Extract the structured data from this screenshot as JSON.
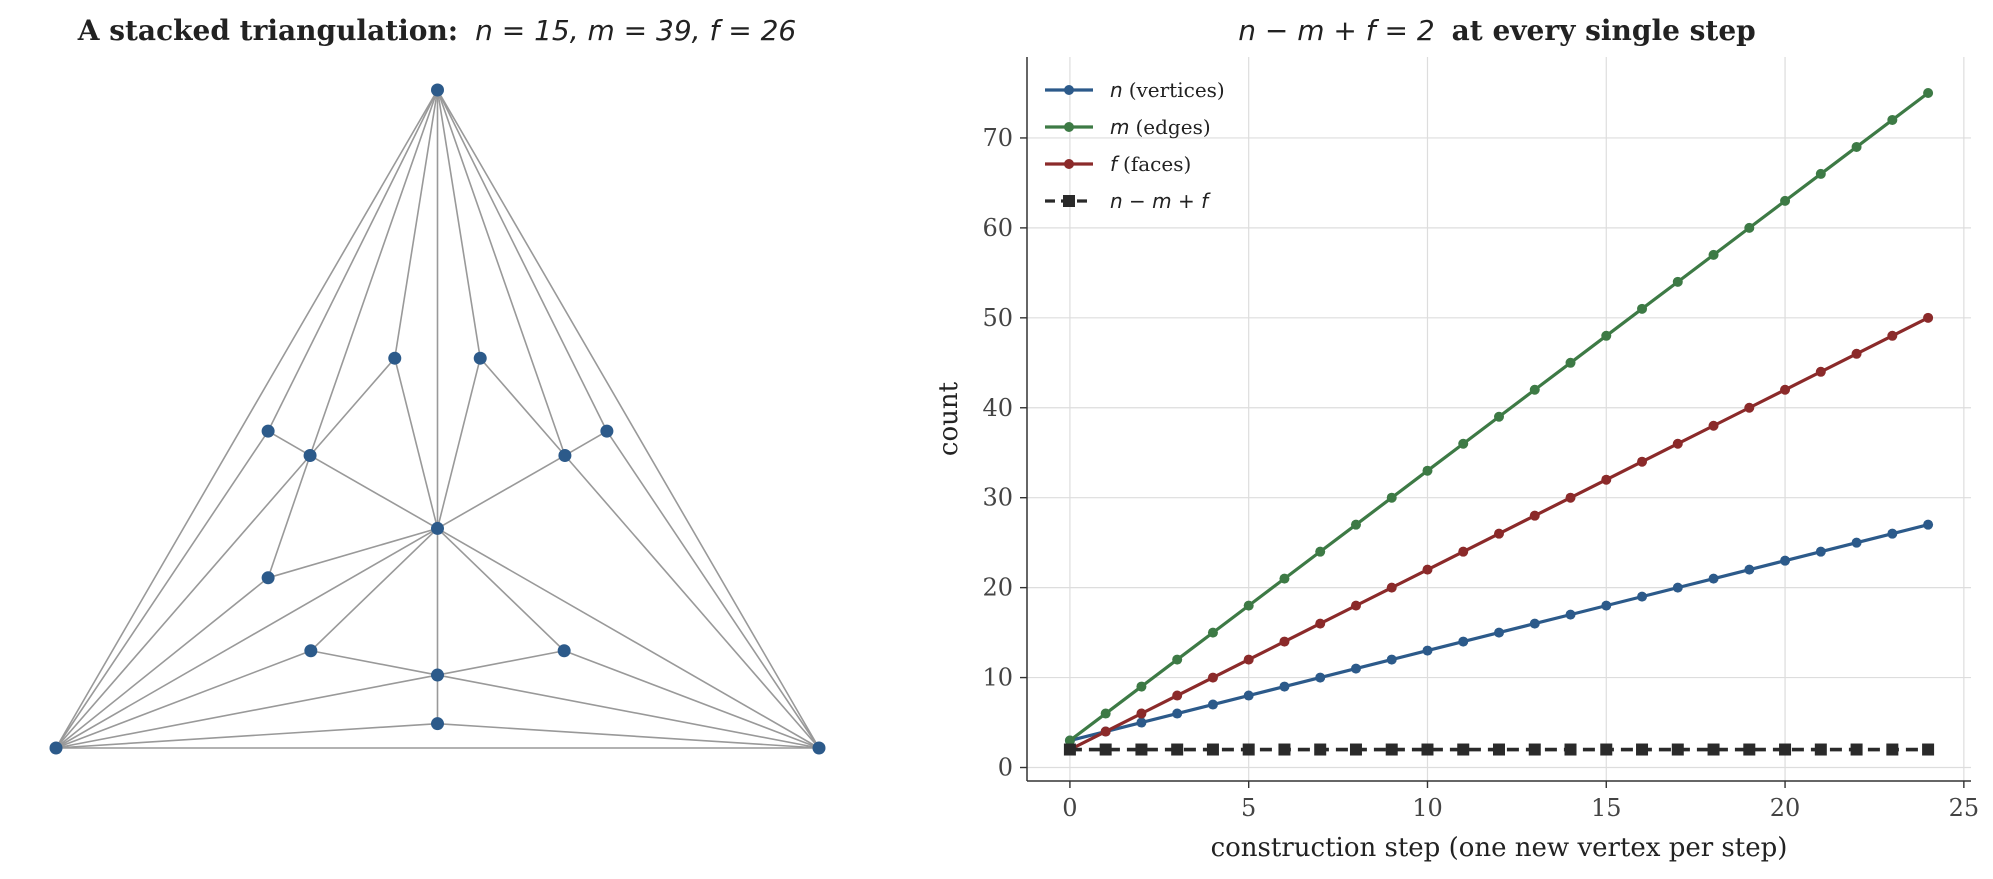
{
  "chart_data": [
    {
      "type": "graph",
      "title_bold": "A stacked triangulation:",
      "title_math": "n = 15, m = 39, f = 26",
      "node_color": "#2c5a8a",
      "edge_color": "#999999",
      "nodes": [
        {
          "id": "A",
          "x": 0.0,
          "y": 0.0
        },
        {
          "id": "B",
          "x": 1.0,
          "y": 0.0
        },
        {
          "id": "C",
          "x": 0.5,
          "y": 0.866
        },
        {
          "id": "O",
          "x": 0.5,
          "y": 0.289
        },
        {
          "id": "P1",
          "x": 0.5,
          "y": 0.096
        },
        {
          "id": "P2",
          "x": 0.334,
          "y": 0.128
        },
        {
          "id": "P3",
          "x": 0.666,
          "y": 0.128
        },
        {
          "id": "P4",
          "x": 0.5,
          "y": 0.032
        },
        {
          "id": "Q1",
          "x": 0.333,
          "y": 0.385
        },
        {
          "id": "Q2",
          "x": 0.278,
          "y": 0.224
        },
        {
          "id": "Q3",
          "x": 0.278,
          "y": 0.417
        },
        {
          "id": "Q4",
          "x": 0.444,
          "y": 0.513
        },
        {
          "id": "R1",
          "x": 0.667,
          "y": 0.385
        },
        {
          "id": "R2",
          "x": 0.556,
          "y": 0.513
        },
        {
          "id": "R3",
          "x": 0.722,
          "y": 0.417
        }
      ],
      "edges": [
        [
          "A",
          "B"
        ],
        [
          "B",
          "C"
        ],
        [
          "C",
          "A"
        ],
        [
          "O",
          "A"
        ],
        [
          "O",
          "B"
        ],
        [
          "O",
          "C"
        ],
        [
          "P1",
          "O"
        ],
        [
          "P1",
          "A"
        ],
        [
          "P1",
          "B"
        ],
        [
          "P2",
          "O"
        ],
        [
          "P2",
          "A"
        ],
        [
          "P2",
          "P1"
        ],
        [
          "P3",
          "O"
        ],
        [
          "P3",
          "B"
        ],
        [
          "P3",
          "P1"
        ],
        [
          "P4",
          "A"
        ],
        [
          "P4",
          "B"
        ],
        [
          "P4",
          "P1"
        ],
        [
          "Q1",
          "O"
        ],
        [
          "Q1",
          "C"
        ],
        [
          "Q1",
          "A"
        ],
        [
          "Q2",
          "O"
        ],
        [
          "Q2",
          "A"
        ],
        [
          "Q2",
          "Q1"
        ],
        [
          "Q3",
          "C"
        ],
        [
          "Q3",
          "A"
        ],
        [
          "Q3",
          "Q1"
        ],
        [
          "Q4",
          "O"
        ],
        [
          "Q4",
          "C"
        ],
        [
          "Q4",
          "Q1"
        ],
        [
          "R1",
          "O"
        ],
        [
          "R1",
          "B"
        ],
        [
          "R1",
          "C"
        ],
        [
          "R2",
          "O"
        ],
        [
          "R2",
          "C"
        ],
        [
          "R2",
          "R1"
        ],
        [
          "R3",
          "B"
        ],
        [
          "R3",
          "C"
        ],
        [
          "R3",
          "R1"
        ]
      ]
    },
    {
      "type": "line",
      "title_math": "n − m + f = 2",
      "title_bold": "at every single step",
      "xlabel": "construction step (one new vertex per step)",
      "ylabel": "count",
      "xlim": [
        -1.2,
        25.2
      ],
      "ylim": [
        -1.5,
        79
      ],
      "xticks": [
        0,
        5,
        10,
        15,
        20,
        25
      ],
      "yticks": [
        0,
        10,
        20,
        30,
        40,
        50,
        60,
        70
      ],
      "grid": true,
      "legend_position": "top-left",
      "x": [
        0,
        1,
        2,
        3,
        4,
        5,
        6,
        7,
        8,
        9,
        10,
        11,
        12,
        13,
        14,
        15,
        16,
        17,
        18,
        19,
        20,
        21,
        22,
        23,
        24
      ],
      "series": [
        {
          "name_math": "n",
          "name_text": "(vertices)",
          "color": "#2c5a8a",
          "marker": "circle",
          "style": "solid",
          "values": [
            3,
            4,
            5,
            6,
            7,
            8,
            9,
            10,
            11,
            12,
            13,
            14,
            15,
            16,
            17,
            18,
            19,
            20,
            21,
            22,
            23,
            24,
            25,
            26,
            27
          ]
        },
        {
          "name_math": "m",
          "name_text": "(edges)",
          "color": "#3d7a45",
          "marker": "circle",
          "style": "solid",
          "values": [
            3,
            6,
            9,
            12,
            15,
            18,
            21,
            24,
            27,
            30,
            33,
            36,
            39,
            42,
            45,
            48,
            51,
            54,
            57,
            60,
            63,
            66,
            69,
            72,
            75
          ]
        },
        {
          "name_math": "f",
          "name_text": "(faces)",
          "color": "#8b2a2a",
          "marker": "circle",
          "style": "solid",
          "values": [
            2,
            4,
            6,
            8,
            10,
            12,
            14,
            16,
            18,
            20,
            22,
            24,
            26,
            28,
            30,
            32,
            34,
            36,
            38,
            40,
            42,
            44,
            46,
            48,
            50
          ]
        },
        {
          "name_math": "n − m + f",
          "name_text": "",
          "color": "#2a2a2a",
          "marker": "square",
          "style": "dashed",
          "values": [
            2,
            2,
            2,
            2,
            2,
            2,
            2,
            2,
            2,
            2,
            2,
            2,
            2,
            2,
            2,
            2,
            2,
            2,
            2,
            2,
            2,
            2,
            2,
            2,
            2
          ]
        }
      ]
    }
  ]
}
